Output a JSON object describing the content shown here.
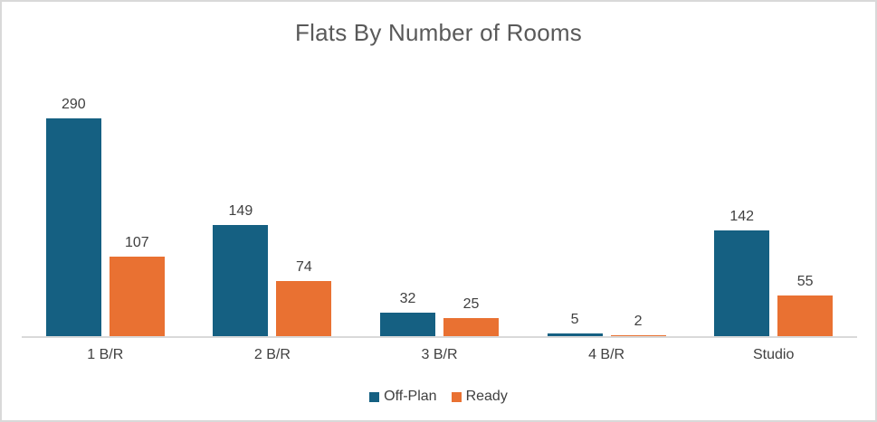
{
  "chart_data": {
    "type": "bar",
    "title": "Flats By Number of Rooms",
    "categories": [
      "1 B/R",
      "2 B/R",
      "3 B/R",
      "4 B/R",
      "Studio"
    ],
    "series": [
      {
        "name": "Off-Plan",
        "color": "#156082",
        "values": [
          290,
          149,
          32,
          5,
          142
        ]
      },
      {
        "name": "Ready",
        "color": "#E97132",
        "values": [
          107,
          74,
          25,
          2,
          55
        ]
      }
    ],
    "data_labels": [
      [
        "290",
        "149",
        "32",
        "5",
        "142"
      ],
      [
        "107",
        "74",
        "25",
        "2",
        "55"
      ]
    ],
    "xlabel": "",
    "ylabel": "",
    "ylim": [
      0,
      290
    ],
    "grid": false,
    "y_axis_visible": false,
    "legend_position": "bottom"
  },
  "colors": {
    "title_text": "#595959",
    "label_text": "#404040",
    "axis_line": "#D9D9D9",
    "border": "#D9D9D9",
    "background": "#FFFFFF"
  }
}
